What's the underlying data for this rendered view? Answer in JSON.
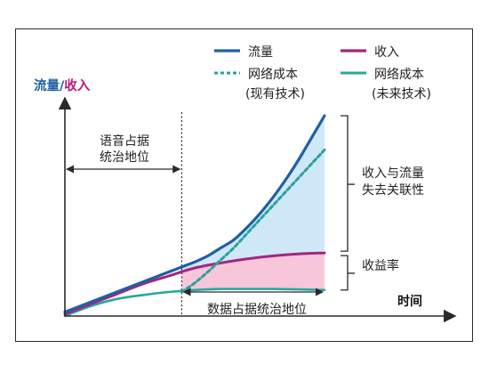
{
  "chart_data": {
    "type": "line",
    "title": "",
    "ylabel": {
      "part1": "流量",
      "slash": "/",
      "part2": "收入"
    },
    "xlabel": "时间",
    "xlim": [
      0,
      100
    ],
    "ylim": [
      0,
      100
    ],
    "colors": {
      "traffic": "#1f5fa6",
      "revenue": "#a3267f",
      "cost_existing": "#2aa198",
      "cost_future": "#27a89c",
      "gap_fill": "#cfe8f7",
      "margin_fill": "#f7c6d9",
      "axis": "#2a2a2a",
      "ylabel_traffic": "#1f5fa6",
      "ylabel_revenue": "#c0187a"
    },
    "legend": {
      "placement": "top-right",
      "items": [
        {
          "key": "traffic",
          "label": "流量",
          "style": "solid"
        },
        {
          "key": "revenue",
          "label": "收入",
          "style": "solid"
        },
        {
          "key": "cost_existing",
          "label": [
            "网络成本",
            "(现有技术)"
          ],
          "style": "dotted"
        },
        {
          "key": "cost_future",
          "label": [
            "网络成本",
            "(未来技术)"
          ],
          "style": "solid"
        }
      ]
    },
    "series": [
      {
        "key": "traffic",
        "x": [
          0,
          10,
          20,
          30,
          40,
          45,
          50,
          55,
          60,
          65,
          70,
          75,
          80,
          85,
          90,
          95,
          100
        ],
        "y": [
          2,
          7,
          12,
          17,
          22,
          24.5,
          27,
          30,
          34,
          38,
          44,
          51,
          59,
          68,
          78,
          89,
          100
        ]
      },
      {
        "key": "revenue",
        "x": [
          0,
          10,
          20,
          30,
          40,
          50,
          60,
          70,
          80,
          90,
          100
        ],
        "y": [
          1,
          6,
          11,
          16,
          20,
          24,
          26.5,
          28.5,
          30,
          31,
          31.5
        ]
      },
      {
        "key": "cost_existing",
        "x": [
          45,
          50,
          55,
          60,
          65,
          70,
          75,
          80,
          85,
          90,
          95,
          100
        ],
        "y": [
          12,
          16.5,
          22,
          28,
          34,
          41,
          48,
          55,
          62,
          69,
          76,
          83
        ]
      },
      {
        "key": "cost_future",
        "x": [
          0,
          10,
          20,
          30,
          40,
          50,
          60,
          70,
          80,
          90,
          100
        ],
        "y": [
          0,
          5,
          8.5,
          10.5,
          12,
          13,
          13.5,
          13.5,
          13.5,
          13.3,
          13
        ]
      }
    ],
    "divider_x": 45,
    "annotations": {
      "left_region": [
        "语音占据",
        "统治地位"
      ],
      "right_region": "数据占据统治地位",
      "decoupling": [
        "收入与流量",
        "失去关联性"
      ],
      "margin": "收益率"
    }
  }
}
